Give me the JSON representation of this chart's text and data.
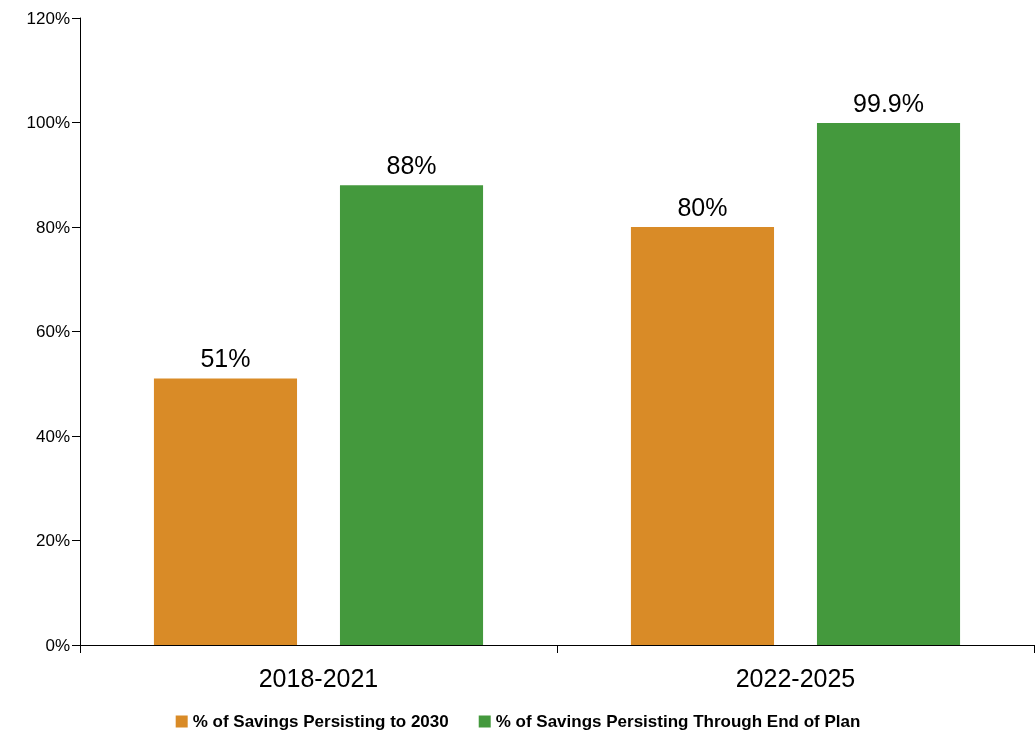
{
  "chart_data": {
    "type": "bar",
    "categories": [
      "2018-2021",
      "2022-2025"
    ],
    "series": [
      {
        "name": "% of Savings Persisting to 2030",
        "color": "#d98b27",
        "values": [
          51,
          80
        ],
        "value_labels": [
          "51%",
          "80%"
        ]
      },
      {
        "name": "% of Savings Persisting Through End of Plan",
        "color": "#44993d",
        "values": [
          88,
          99.9
        ],
        "value_labels": [
          "88%",
          "99.9%"
        ]
      }
    ],
    "ylim": [
      0,
      120
    ],
    "yticks": [
      {
        "value": 0,
        "label": "0%"
      },
      {
        "value": 20,
        "label": "20%"
      },
      {
        "value": 40,
        "label": "40%"
      },
      {
        "value": 60,
        "label": "60%"
      },
      {
        "value": 80,
        "label": "80%"
      },
      {
        "value": 100,
        "label": "100%"
      },
      {
        "value": 120,
        "label": "120%"
      }
    ],
    "grid": false,
    "legend": "bottom"
  }
}
